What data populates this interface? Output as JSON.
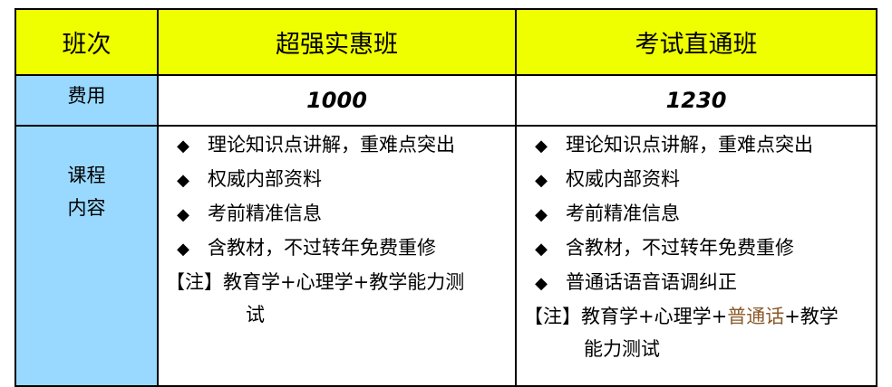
{
  "header": {
    "col0": "班次",
    "col1": "超强实惠班",
    "col2": "考试直通班"
  },
  "fee": {
    "label": "费用",
    "col1": "1000",
    "col2": "1230"
  },
  "content": {
    "label_line1": "课程",
    "label_line2": "内容",
    "col1": {
      "items": [
        "理论知识点讲解，重难点突出",
        "权威内部资料",
        "考前精准信息",
        "含教材，不过转年免费重修"
      ],
      "note_line1": "【注】教育学+心理学+教学能力测",
      "note_line2": "试"
    },
    "col2": {
      "items": [
        "理论知识点讲解，重难点突出",
        "权威内部资料",
        "考前精准信息",
        "含教材，不过转年免费重修",
        "普通话语音语调纠正"
      ],
      "note_pre": "【注】教育学+心理学+",
      "note_highlight": "普通话",
      "note_post": "+教学",
      "note_line2": "能力测试"
    },
    "bullet_icon": "diamond-icon",
    "highlight_color": "#8a5a2a"
  },
  "colors": {
    "header_bg": "#f0ff00",
    "label_bg": "#99d9ff"
  }
}
